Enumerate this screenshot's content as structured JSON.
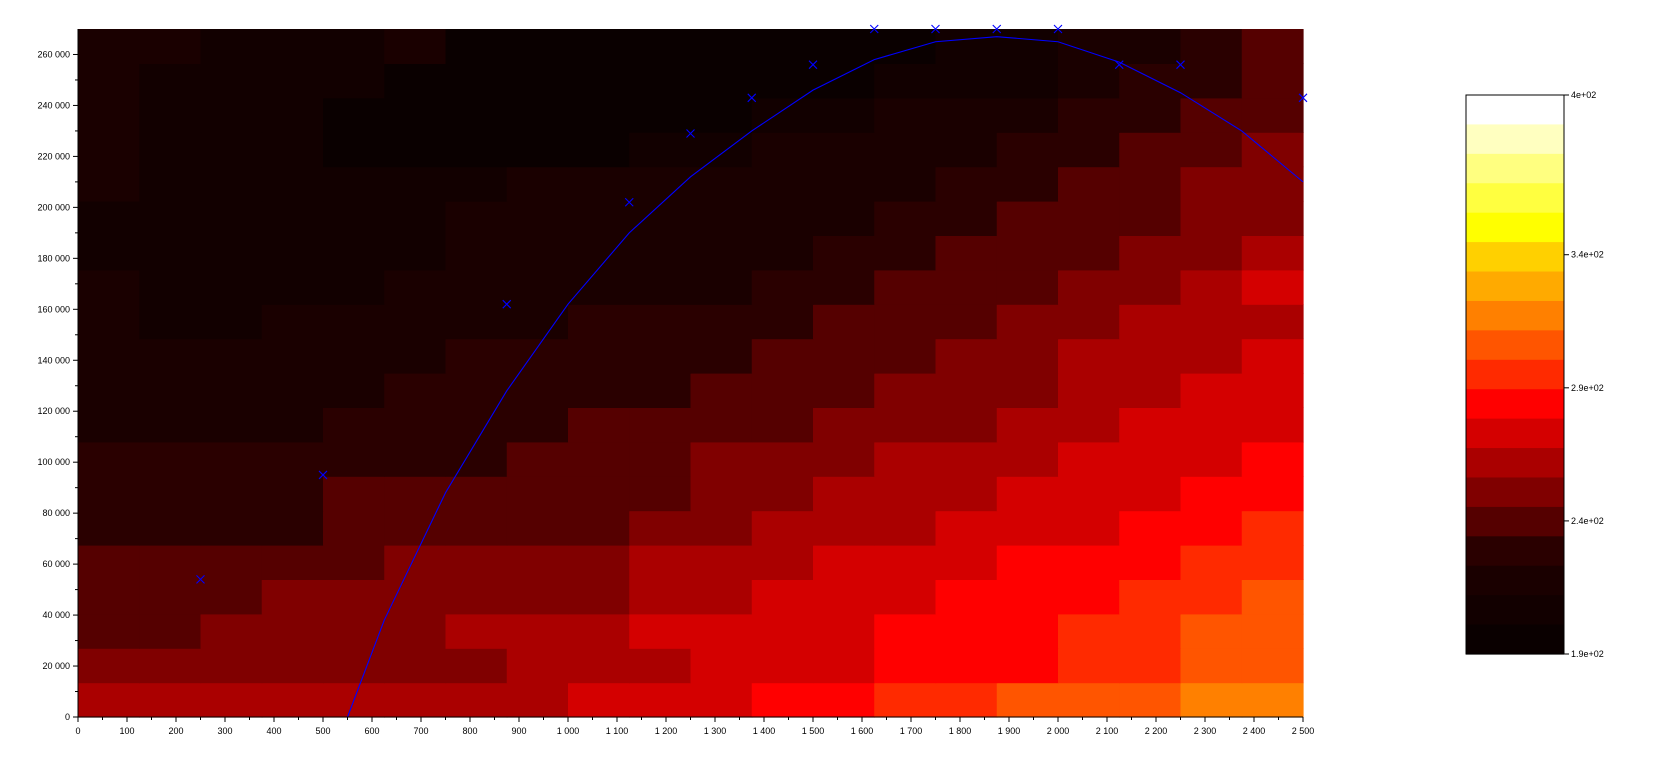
{
  "chart_data": [
    {
      "type": "heatmap",
      "title": "",
      "xlabel": "",
      "ylabel": "",
      "xlim": [
        0,
        2500
      ],
      "ylim": [
        0,
        270000
      ],
      "x_ticks": [
        0,
        100,
        200,
        300,
        400,
        500,
        600,
        700,
        800,
        900,
        1000,
        1100,
        1200,
        1300,
        1400,
        1500,
        1600,
        1700,
        1800,
        1900,
        2000,
        2100,
        2200,
        2300,
        2400,
        2500
      ],
      "x_tick_labels": [
        "0",
        "100",
        "200",
        "300",
        "400",
        "500",
        "600",
        "700",
        "800",
        "900",
        "1 000",
        "1 100",
        "1 200",
        "1 300",
        "1 400",
        "1 500",
        "1 600",
        "1 700",
        "1 800",
        "1 900",
        "2 000",
        "2 100",
        "2 200",
        "2 300",
        "2 400",
        "2 500"
      ],
      "y_ticks": [
        0,
        20000,
        40000,
        60000,
        80000,
        100000,
        120000,
        140000,
        160000,
        180000,
        200000,
        220000,
        240000,
        260000
      ],
      "y_tick_labels": [
        "0",
        "20 000",
        "40 000",
        "60 000",
        "80 000",
        "100 000",
        "120 000",
        "140 000",
        "160 000",
        "180 000",
        "200 000",
        "220 000",
        "240 000",
        "260 000"
      ],
      "x_cells": [
        0,
        125,
        250,
        375,
        500,
        625,
        750,
        875,
        1000,
        1125,
        1250,
        1375,
        1500,
        1625,
        1750,
        1875,
        2000,
        2125,
        2250,
        2375,
        2500
      ],
      "y_cells": [
        0,
        13500,
        27000,
        40500,
        54000,
        67500,
        81000,
        94500,
        108000,
        121500,
        135000,
        148500,
        162000,
        175500,
        189000,
        202500,
        216000,
        229500,
        243000,
        256500,
        270000
      ],
      "levels": [
        [
          12,
          12,
          12,
          12,
          12,
          12,
          12,
          12,
          11,
          11,
          11,
          10,
          10,
          9,
          9,
          8,
          8,
          8,
          7,
          7
        ],
        [
          13,
          13,
          13,
          13,
          13,
          13,
          13,
          12,
          12,
          12,
          11,
          11,
          11,
          10,
          10,
          10,
          9,
          9,
          8,
          8
        ],
        [
          14,
          14,
          13,
          13,
          13,
          13,
          12,
          12,
          12,
          11,
          11,
          11,
          11,
          10,
          10,
          10,
          9,
          9,
          8,
          8
        ],
        [
          14,
          14,
          14,
          13,
          13,
          13,
          13,
          13,
          13,
          12,
          12,
          11,
          11,
          11,
          10,
          10,
          10,
          9,
          9,
          8
        ],
        [
          14,
          14,
          14,
          14,
          14,
          13,
          13,
          13,
          13,
          12,
          12,
          12,
          11,
          11,
          11,
          10,
          10,
          10,
          9,
          9
        ],
        [
          15,
          15,
          15,
          15,
          14,
          14,
          14,
          14,
          14,
          13,
          13,
          12,
          12,
          12,
          11,
          11,
          11,
          10,
          10,
          9
        ],
        [
          15,
          15,
          15,
          15,
          14,
          14,
          14,
          14,
          14,
          14,
          13,
          13,
          12,
          12,
          12,
          11,
          11,
          11,
          10,
          10
        ],
        [
          15,
          15,
          15,
          15,
          15,
          15,
          15,
          14,
          14,
          14,
          13,
          13,
          13,
          12,
          12,
          12,
          11,
          11,
          11,
          10
        ],
        [
          16,
          16,
          16,
          16,
          15,
          15,
          15,
          15,
          14,
          14,
          14,
          14,
          13,
          13,
          13,
          12,
          12,
          11,
          11,
          11
        ],
        [
          16,
          16,
          16,
          16,
          16,
          15,
          15,
          15,
          15,
          15,
          14,
          14,
          14,
          13,
          13,
          13,
          12,
          12,
          11,
          11
        ],
        [
          16,
          16,
          16,
          16,
          16,
          16,
          15,
          15,
          15,
          15,
          15,
          14,
          14,
          14,
          13,
          13,
          12,
          12,
          12,
          11
        ],
        [
          16,
          17,
          17,
          16,
          16,
          16,
          16,
          16,
          15,
          15,
          15,
          15,
          14,
          14,
          14,
          13,
          13,
          12,
          12,
          12
        ],
        [
          16,
          17,
          17,
          17,
          17,
          16,
          16,
          16,
          16,
          16,
          16,
          15,
          15,
          14,
          14,
          14,
          13,
          13,
          12,
          11
        ],
        [
          17,
          17,
          17,
          17,
          17,
          17,
          16,
          16,
          16,
          16,
          16,
          16,
          15,
          15,
          14,
          14,
          14,
          13,
          13,
          12
        ],
        [
          17,
          17,
          17,
          17,
          17,
          17,
          16,
          16,
          16,
          16,
          16,
          16,
          16,
          15,
          15,
          14,
          14,
          14,
          13,
          13
        ],
        [
          16,
          17,
          17,
          17,
          17,
          17,
          17,
          16,
          16,
          16,
          16,
          16,
          16,
          16,
          15,
          15,
          14,
          14,
          13,
          13
        ],
        [
          16,
          17,
          17,
          17,
          18,
          18,
          18,
          18,
          18,
          17,
          17,
          16,
          16,
          16,
          16,
          15,
          15,
          14,
          14,
          13
        ],
        [
          16,
          17,
          17,
          17,
          18,
          18,
          18,
          18,
          18,
          18,
          18,
          17,
          17,
          16,
          16,
          16,
          15,
          15,
          14,
          14
        ],
        [
          16,
          17,
          17,
          17,
          17,
          18,
          18,
          18,
          18,
          18,
          18,
          18,
          18,
          17,
          17,
          17,
          16,
          15,
          15,
          14
        ],
        [
          16,
          16,
          17,
          17,
          17,
          16,
          18,
          18,
          18,
          18,
          18,
          18,
          18,
          18,
          17,
          17,
          16,
          16,
          15,
          14
        ]
      ],
      "colorbar": {
        "min": 190,
        "max": 400,
        "tick_values": [
          400,
          340,
          290,
          240,
          190
        ],
        "tick_labels": [
          "4e+02",
          "3.4e+02",
          "2.9e+02",
          "2.4e+02",
          "1.9e+02"
        ],
        "colors": [
          "#ffffff",
          "#ffffc0",
          "#ffff80",
          "#ffff40",
          "#ffff00",
          "#ffd000",
          "#ffaa00",
          "#ff8000",
          "#ff5500",
          "#ff2a00",
          "#ff0000",
          "#d40000",
          "#aa0000",
          "#800000",
          "#550000",
          "#2a0000",
          "#1a0000",
          "#120000",
          "#0a0000"
        ]
      },
      "fitted_curve": {
        "x": [
          550,
          625,
          750,
          875,
          1000,
          1125,
          1250,
          1375,
          1500,
          1625,
          1750,
          1875,
          2000,
          2125,
          2250,
          2375,
          2500
        ],
        "y": [
          0,
          38000,
          88000,
          128000,
          162000,
          190000,
          212000,
          230000,
          246000,
          258000,
          265000,
          267000,
          265000,
          257000,
          245000,
          230000,
          210000
        ],
        "color": "#0000ff"
      },
      "measured_points": {
        "x": [
          250,
          500,
          875,
          1125,
          1250,
          1375,
          1500,
          1625,
          1750,
          1875,
          2000,
          2125,
          2250,
          2500
        ],
        "y": [
          54000,
          95000,
          162000,
          202000,
          229000,
          243000,
          256000,
          270000,
          270000,
          270000,
          270000,
          256000,
          256000,
          243000
        ],
        "marker": "x",
        "color": "#0000ff"
      }
    }
  ]
}
